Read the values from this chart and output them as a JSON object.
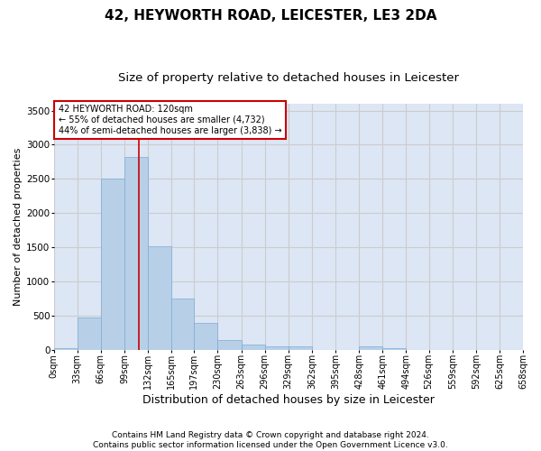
{
  "title1": "42, HEYWORTH ROAD, LEICESTER, LE3 2DA",
  "title2": "Size of property relative to detached houses in Leicester",
  "xlabel": "Distribution of detached houses by size in Leicester",
  "ylabel": "Number of detached properties",
  "footnote1": "Contains HM Land Registry data © Crown copyright and database right 2024.",
  "footnote2": "Contains public sector information licensed under the Open Government Licence v3.0.",
  "annotation_line1": "42 HEYWORTH ROAD: 120sqm",
  "annotation_line2": "← 55% of detached houses are smaller (4,732)",
  "annotation_line3": "44% of semi-detached houses are larger (3,838) →",
  "property_sqm": 120,
  "bin_edges": [
    0,
    33,
    66,
    99,
    132,
    165,
    197,
    230,
    263,
    296,
    329,
    362,
    395,
    428,
    461,
    494,
    526,
    559,
    592,
    625,
    658
  ],
  "bar_heights": [
    20,
    480,
    2510,
    2820,
    1520,
    750,
    390,
    145,
    75,
    55,
    55,
    0,
    0,
    50,
    25,
    0,
    0,
    0,
    0,
    0
  ],
  "bar_color": "#b8cfe8",
  "bar_edgecolor": "#7aadd4",
  "vline_color": "#cc0000",
  "vline_x": 120,
  "ylim": [
    0,
    3600
  ],
  "yticks": [
    0,
    500,
    1000,
    1500,
    2000,
    2500,
    3000,
    3500
  ],
  "grid_color": "#cccccc",
  "bg_color": "#dce6f5",
  "annotation_box_color": "#cc0000",
  "title1_fontsize": 11,
  "title2_fontsize": 9.5,
  "xlabel_fontsize": 9,
  "ylabel_fontsize": 8,
  "tick_fontsize": 7,
  "annotation_fontsize": 7,
  "footnote_fontsize": 6.5
}
